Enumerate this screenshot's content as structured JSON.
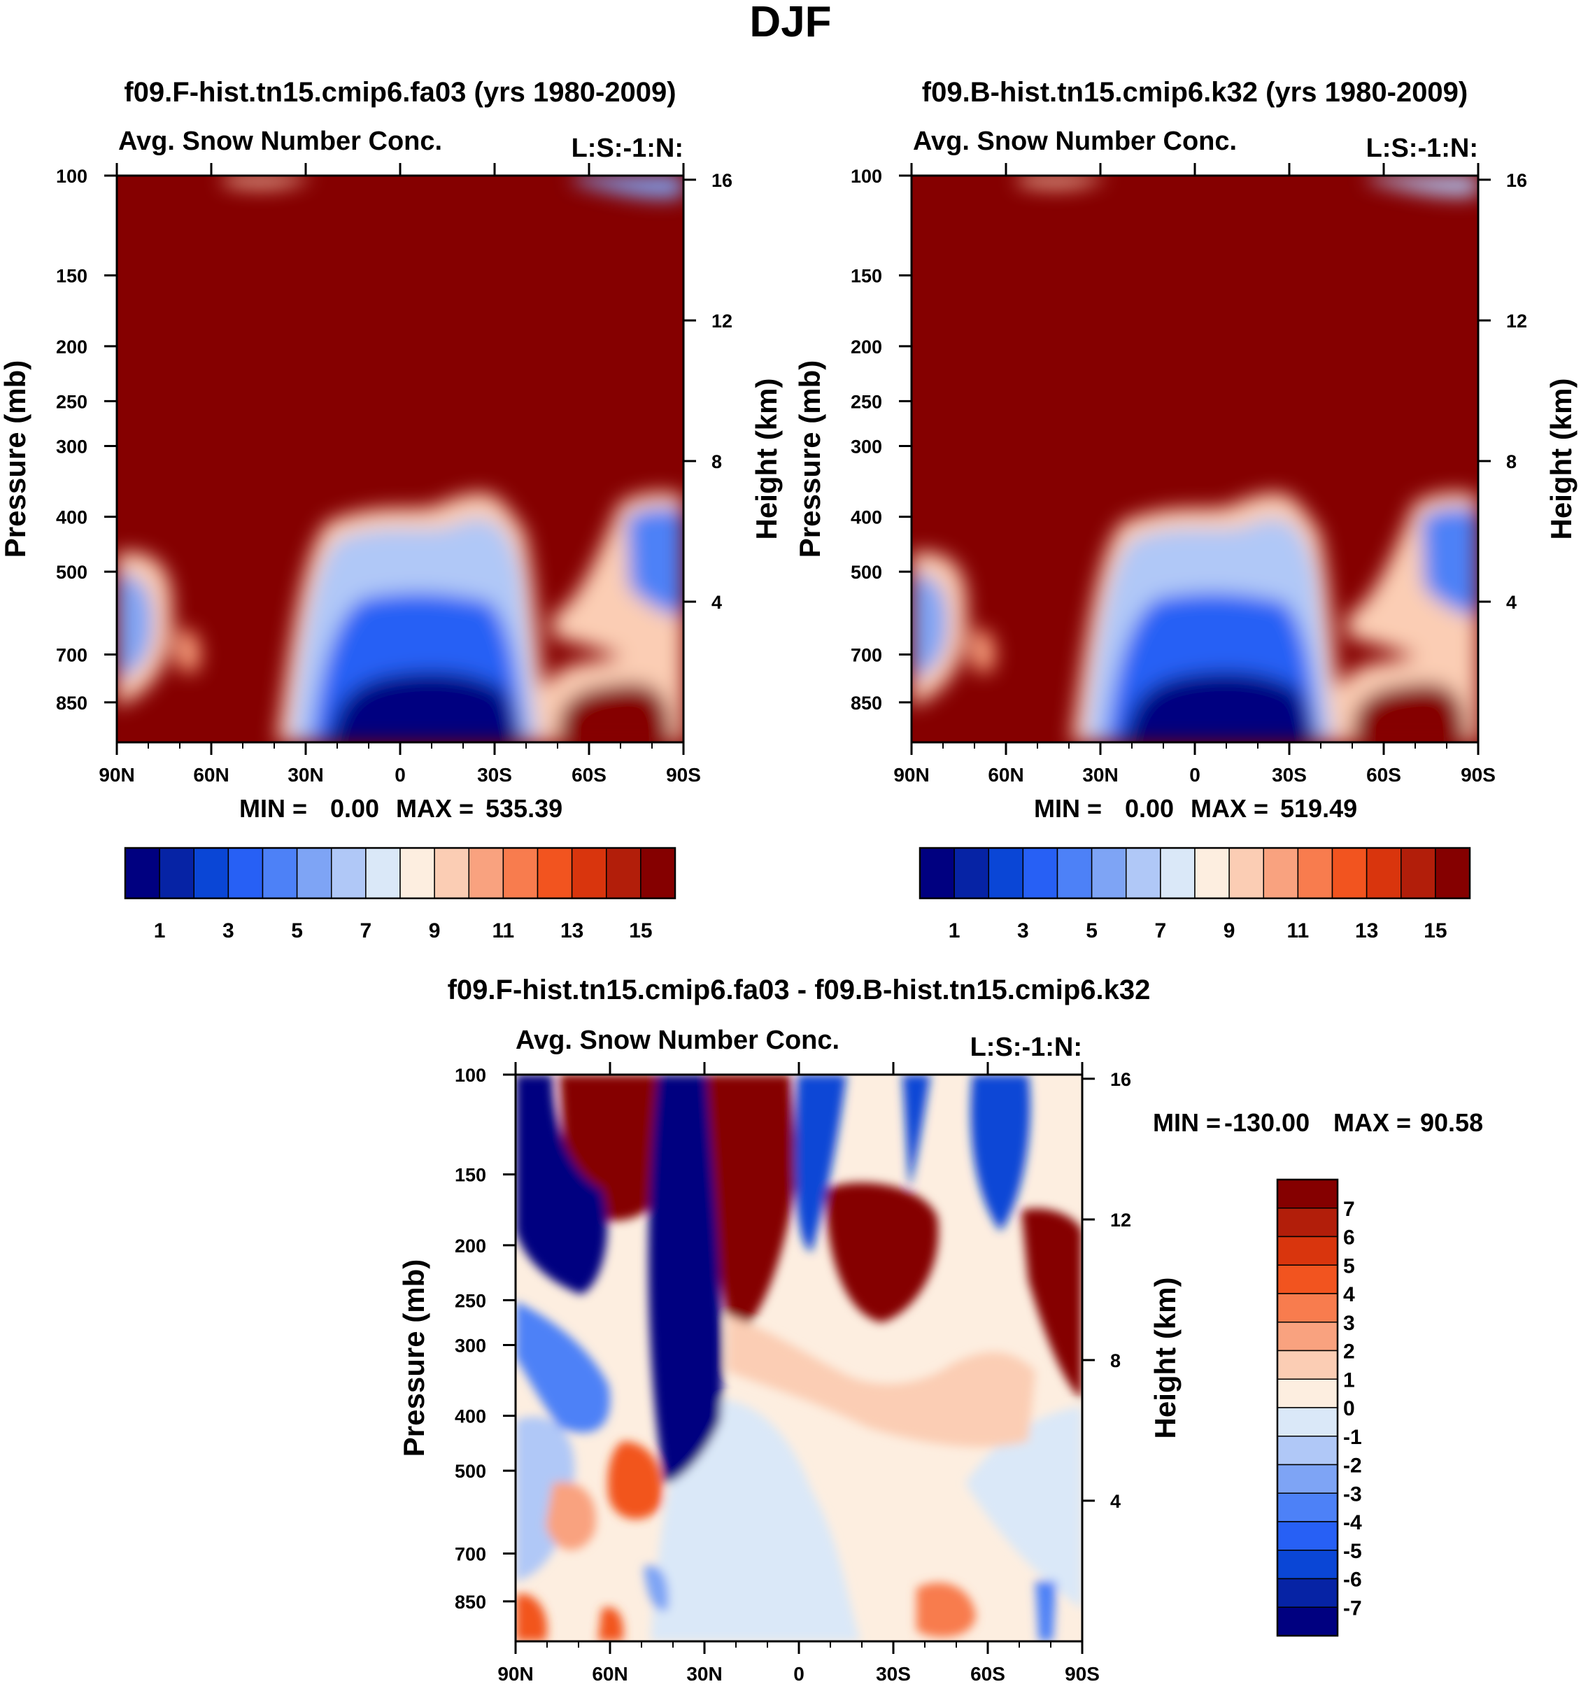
{
  "page_title": "DJF",
  "colors": {
    "field": [
      "#000080",
      "#0623a5",
      "#0a46d6",
      "#2760f5",
      "#4d81f7",
      "#7ea4f5",
      "#b0c8f7",
      "#dae8f8",
      "#fdeee0",
      "#fbcdb4",
      "#f9a27f",
      "#f87c4e",
      "#f2541f",
      "#d9350d",
      "#b21e0a",
      "#850000"
    ],
    "diff": [
      "#000080",
      "#0623a5",
      "#0a46d6",
      "#2760f5",
      "#4d81f7",
      "#7ea4f5",
      "#b0c8f7",
      "#dae8f8",
      "#fdeee0",
      "#fbcdb4",
      "#f9a27f",
      "#f87c4e",
      "#f2541f",
      "#d9350d",
      "#b21e0a",
      "#850000"
    ]
  },
  "chart_data": [
    {
      "id": "panel-a",
      "type": "contour",
      "case_title": "f09.F-hist.tn15.cmip6.fa03 (yrs 1980-2009)",
      "variable": "Avg. Snow Number Conc.",
      "units_tag": "L:S:-1:N:",
      "ylabel": "Pressure (mb)",
      "y2label": "Height (km)",
      "x_ticks": [
        "90N",
        "60N",
        "30N",
        "0",
        "30S",
        "60S",
        "90S"
      ],
      "y_ticks": [
        "100",
        "150",
        "200",
        "250",
        "300",
        "400",
        "500",
        "700",
        "850"
      ],
      "y_tick_values": [
        100,
        150,
        200,
        250,
        300,
        400,
        500,
        700,
        850
      ],
      "ylim": [
        100,
        1000
      ],
      "y2_ticks": [
        "16",
        "12",
        "8",
        "4"
      ],
      "y2_tick_values": [
        16,
        12,
        8,
        4
      ],
      "min_label": "MIN =",
      "min_value": "0.00",
      "max_label": "MAX =",
      "max_value": "535.39",
      "colorbar": {
        "orientation": "horizontal",
        "n_colors": 16,
        "labels": [
          "1",
          "3",
          "5",
          "7",
          "9",
          "11",
          "13",
          "15"
        ]
      }
    },
    {
      "id": "panel-b",
      "type": "contour",
      "case_title": "f09.B-hist.tn15.cmip6.k32 (yrs 1980-2009)",
      "variable": "Avg. Snow Number Conc.",
      "units_tag": "L:S:-1:N:",
      "ylabel": "Pressure (mb)",
      "y2label": "Height (km)",
      "x_ticks": [
        "90N",
        "60N",
        "30N",
        "0",
        "30S",
        "60S",
        "90S"
      ],
      "y_ticks": [
        "100",
        "150",
        "200",
        "250",
        "300",
        "400",
        "500",
        "700",
        "850"
      ],
      "y_tick_values": [
        100,
        150,
        200,
        250,
        300,
        400,
        500,
        700,
        850
      ],
      "ylim": [
        100,
        1000
      ],
      "y2_ticks": [
        "16",
        "12",
        "8",
        "4"
      ],
      "y2_tick_values": [
        16,
        12,
        8,
        4
      ],
      "min_label": "MIN =",
      "min_value": "0.00",
      "max_label": "MAX =",
      "max_value": "519.49",
      "colorbar": {
        "orientation": "horizontal",
        "n_colors": 16,
        "labels": [
          "1",
          "3",
          "5",
          "7",
          "9",
          "11",
          "13",
          "15"
        ]
      }
    },
    {
      "id": "panel-diff",
      "type": "contour",
      "case_title": "f09.F-hist.tn15.cmip6.fa03 - f09.B-hist.tn15.cmip6.k32",
      "variable": "Avg. Snow Number Conc.",
      "units_tag": "L:S:-1:N:",
      "ylabel": "Pressure (mb)",
      "y2label": "Height (km)",
      "x_ticks": [
        "90N",
        "60N",
        "30N",
        "0",
        "30S",
        "60S",
        "90S"
      ],
      "y_ticks": [
        "100",
        "150",
        "200",
        "250",
        "300",
        "400",
        "500",
        "700",
        "850"
      ],
      "y_tick_values": [
        100,
        150,
        200,
        250,
        300,
        400,
        500,
        700,
        850
      ],
      "ylim": [
        100,
        1000
      ],
      "y2_ticks": [
        "16",
        "12",
        "8",
        "4"
      ],
      "y2_tick_values": [
        16,
        12,
        8,
        4
      ],
      "min_label": "MIN =",
      "min_value": "-130.00",
      "max_label": "MAX =",
      "max_value": "90.58",
      "colorbar": {
        "orientation": "vertical",
        "n_colors": 16,
        "labels": [
          "7",
          "6",
          "5",
          "4",
          "3",
          "2",
          "1",
          "0",
          "-1",
          "-2",
          "-3",
          "-4",
          "-5",
          "-6",
          "-7"
        ]
      }
    }
  ]
}
